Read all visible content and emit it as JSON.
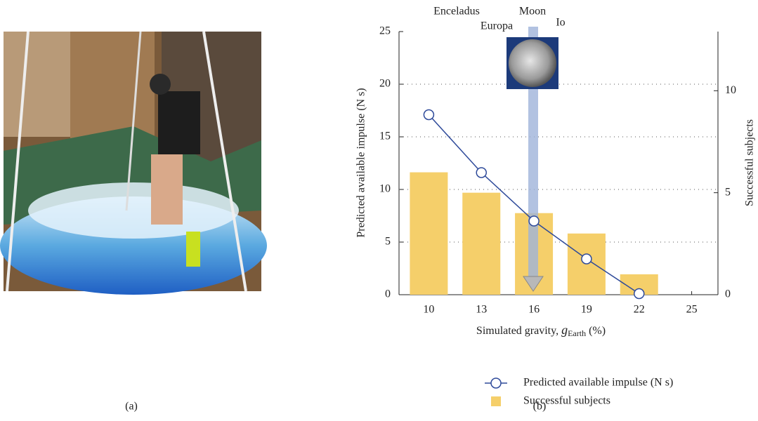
{
  "chart_data": {
    "type": "bar-line",
    "xlabel": [
      "Simulated gravity, ",
      "g",
      "Earth",
      " (%)"
    ],
    "ylabel": "Predicted available impulse (N s)",
    "y2label": "Successful subjects",
    "annotations": [
      "Enceladus",
      "Europa",
      "Moon",
      "Io"
    ],
    "x": [
      10,
      13,
      16,
      19,
      22,
      25
    ],
    "xlim": [
      8.3,
      26.5
    ],
    "xticks": [
      10,
      13,
      16,
      19,
      22,
      25
    ],
    "ylim": [
      0,
      25
    ],
    "yticks": [
      0,
      5,
      10,
      15,
      20,
      25
    ],
    "y2lim": [
      0,
      12.9
    ],
    "y2ticks": [
      0,
      5,
      10
    ],
    "grid": true,
    "series": [
      {
        "name": "Predicted available impulse (N s)",
        "kind": "line",
        "color": "#2e4a9a",
        "values": [
          17.1,
          11.6,
          7.0,
          3.4,
          0.1,
          null
        ]
      },
      {
        "name": "Successful subjects",
        "kind": "bar",
        "axis": "y2",
        "color": "#f5cf6a",
        "values": [
          6,
          5,
          4,
          3,
          1,
          0
        ]
      }
    ]
  },
  "captions": [
    "(a)",
    "(b)"
  ]
}
